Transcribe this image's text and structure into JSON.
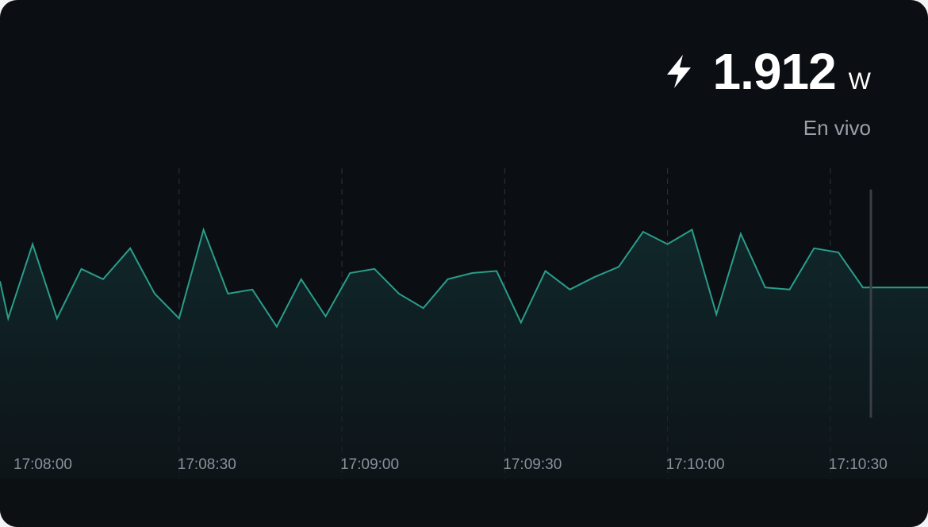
{
  "readout": {
    "value": "1.912",
    "unit": "W",
    "status": "En vivo",
    "icon": "lightning-bolt-icon"
  },
  "colors": {
    "background": "#0b0e12",
    "line": "#2a9d8a",
    "fill_top": "#123033",
    "gridline": "#2a2f36",
    "cursor": "#3a3f47"
  },
  "chart_data": {
    "type": "area",
    "title": "",
    "xlabel": "",
    "ylabel": "",
    "x_ticks": [
      "17:08:00",
      "17:08:30",
      "17:09:00",
      "17:09:30",
      "17:10:00",
      "17:10:30"
    ],
    "x_tick_times": [
      0,
      30,
      60,
      90,
      120,
      150
    ],
    "x_range": [
      -3,
      168
    ],
    "ylim": [
      0,
      100
    ],
    "grid": "vertical-dashed",
    "x": [
      -3,
      -1.5,
      3,
      7.5,
      12,
      16,
      21,
      25.5,
      30,
      34.5,
      39,
      43.5,
      48,
      52.5,
      57,
      61.5,
      66,
      70.5,
      75,
      79.5,
      84,
      88.5,
      93,
      97.5,
      102,
      106.5,
      111,
      115.5,
      120,
      124.5,
      129,
      133.5,
      138,
      142.5,
      147,
      151.5,
      156,
      160.5,
      165,
      168
    ],
    "values": [
      56,
      38,
      74,
      38,
      62,
      57,
      72,
      50,
      38,
      81,
      50,
      52,
      34,
      57,
      39,
      60,
      62,
      50,
      43,
      57,
      60,
      61,
      36,
      61,
      52,
      58,
      63,
      80,
      74,
      81,
      40,
      79,
      53,
      52,
      72,
      70,
      53,
      78,
      51,
      53
    ],
    "hold_value": 53
  }
}
